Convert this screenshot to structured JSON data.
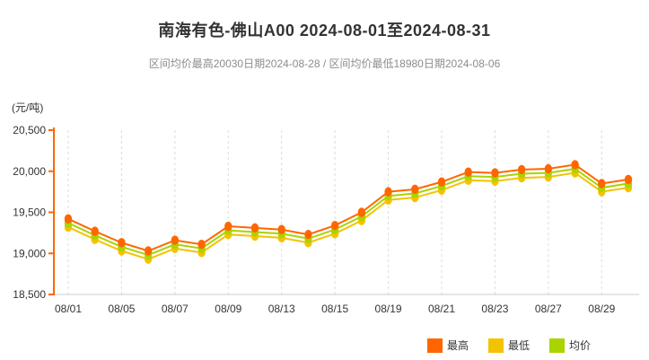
{
  "header": {
    "title": "南海有色-佛山A00 2024-08-01至2024-08-31",
    "subtitle": "区间均价最高20030日期2024-08-28 / 区间均价最低18980日期2024-08-06"
  },
  "chart_data": {
    "type": "line",
    "title": "南海有色-佛山A00 2024-08-01至2024-08-31",
    "y_unit_label": "(元/吨)",
    "ylim": [
      18500,
      20500
    ],
    "y_tick_values": [
      18500,
      19000,
      19500,
      20000,
      20500
    ],
    "y_tick_labels": [
      "18,500",
      "19,000",
      "19,500",
      "20,000",
      "20,500"
    ],
    "grid": "vertical-dashed-at-labeled-x",
    "legend_position": "bottom-right",
    "categories": [
      "08/01",
      "08/02",
      "08/05",
      "08/06",
      "08/07",
      "08/08",
      "08/09",
      "08/12",
      "08/13",
      "08/14",
      "08/15",
      "08/16",
      "08/19",
      "08/20",
      "08/21",
      "08/22",
      "08/23",
      "08/26",
      "08/27",
      "08/28",
      "08/29",
      "08/30"
    ],
    "x_labeled_indices": [
      0,
      2,
      4,
      6,
      8,
      10,
      12,
      14,
      16,
      18,
      20
    ],
    "x_tick_labels": [
      "08/01",
      "08/05",
      "08/07",
      "08/09",
      "08/13",
      "08/15",
      "08/19",
      "08/21",
      "08/23",
      "08/27",
      "08/29"
    ],
    "series": [
      {
        "id": "high",
        "name": "最高",
        "color": "#FF6600",
        "values": [
          19420,
          19270,
          19130,
          19030,
          19160,
          19110,
          19330,
          19310,
          19290,
          19230,
          19340,
          19500,
          19750,
          19780,
          19870,
          19990,
          19980,
          20020,
          20030,
          20080,
          19850,
          19900
        ]
      },
      {
        "id": "low",
        "name": "最低",
        "color": "#F3C300",
        "values": [
          19320,
          19170,
          19030,
          18930,
          19060,
          19010,
          19230,
          19210,
          19190,
          19130,
          19240,
          19400,
          19650,
          19680,
          19770,
          19890,
          19880,
          19920,
          19930,
          19980,
          19750,
          19800
        ]
      },
      {
        "id": "avg",
        "name": "均价",
        "color": "#A8D400",
        "values": [
          19370,
          19220,
          19080,
          18980,
          19110,
          19060,
          19280,
          19260,
          19240,
          19180,
          19290,
          19450,
          19700,
          19730,
          19820,
          19940,
          19930,
          19970,
          19980,
          20030,
          19800,
          19850
        ]
      }
    ],
    "annotations": {
      "max_avg": {
        "value": 20030,
        "date": "2024-08-28"
      },
      "min_avg": {
        "value": 18980,
        "date": "2024-08-06"
      }
    }
  },
  "legend": {
    "items": [
      {
        "label": "最高",
        "color": "#FF6600"
      },
      {
        "label": "最低",
        "color": "#F3C300"
      },
      {
        "label": "均价",
        "color": "#A8D400"
      }
    ]
  },
  "colors": {
    "y_axis": "#FF6600",
    "x_axis": "#CCCCCC",
    "gridline": "#DDDDDD",
    "tick_text": "#333333",
    "title_text": "#333333",
    "subtitle_text": "#8C8C8C",
    "background": "#FFFFFF"
  }
}
